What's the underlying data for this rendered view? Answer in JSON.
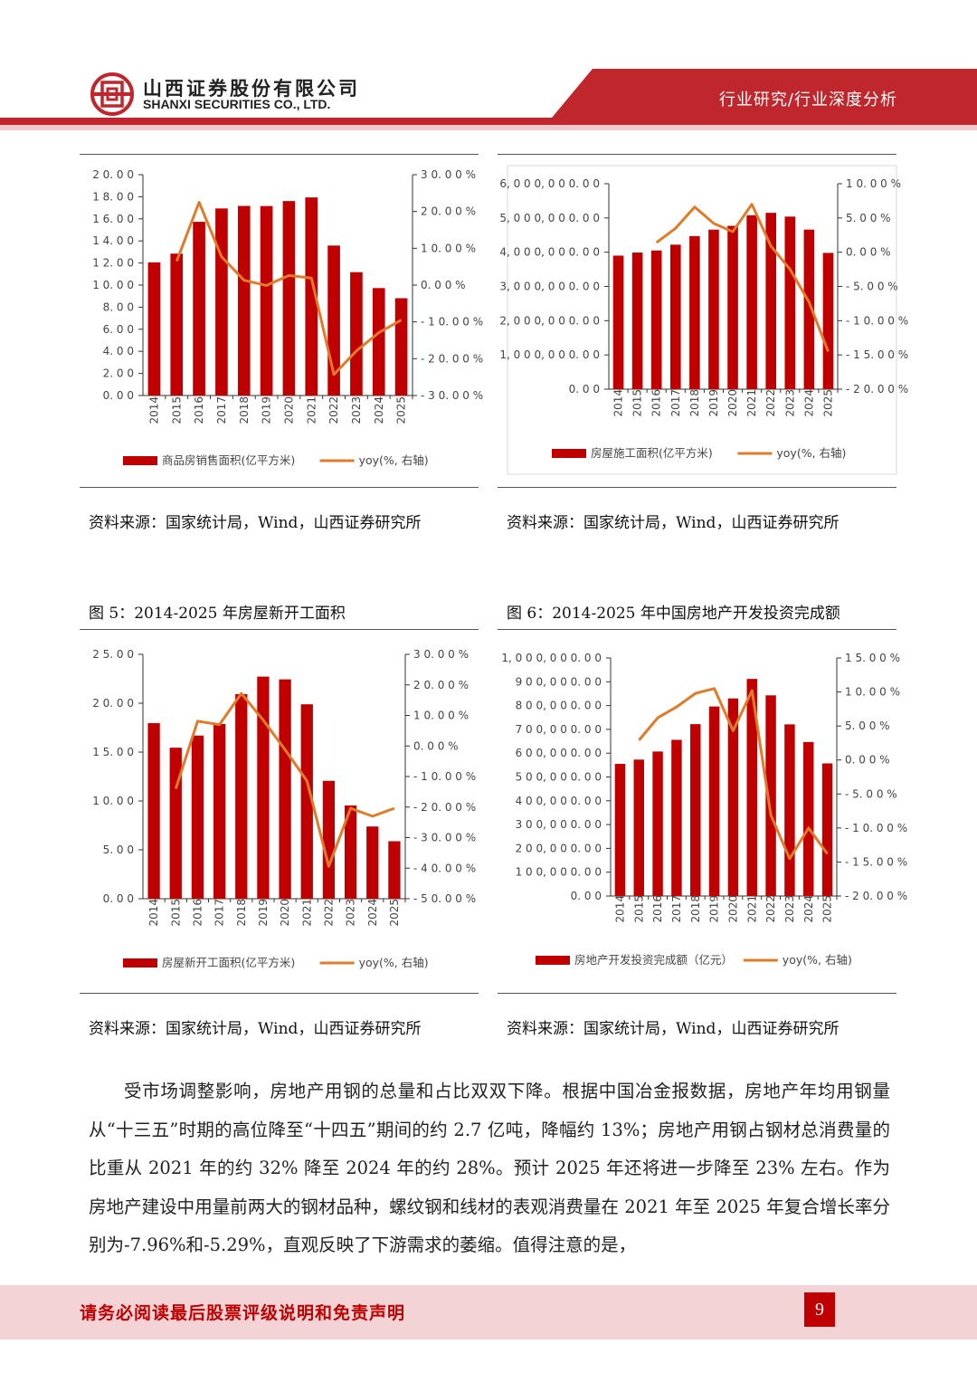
{
  "header": {
    "company_cn": "山西证券股份有限公司",
    "company_en": "SHANXI SECURITIES CO., LTD.",
    "category": "行业研究/行业深度分析"
  },
  "colors": {
    "bar": "#c00000",
    "line": "#e07b2a",
    "brand": "#c0272d",
    "footer_bg": "#f3d3d6"
  },
  "chart_data": [
    {
      "type": "bar",
      "title": "",
      "categories": [
        "2014",
        "2015",
        "2016",
        "2017",
        "2018",
        "2019",
        "2020",
        "2021",
        "2022",
        "2023",
        "2024",
        "2025"
      ],
      "series": [
        {
          "name": "商品房销售面积(亿平方米)",
          "axis": "left",
          "type": "bar",
          "values": [
            12.06,
            12.85,
            15.73,
            16.94,
            17.17,
            17.16,
            17.61,
            17.94,
            13.58,
            11.17,
            9.73,
            8.81
          ]
        },
        {
          "name": "yoy(%, 右轴)",
          "axis": "right",
          "type": "line",
          "values": [
            null,
            6.5,
            22.5,
            7.7,
            1.3,
            -0.1,
            2.6,
            1.9,
            -24.3,
            -17.9,
            -12.9,
            -9.5
          ]
        }
      ],
      "left_axis": {
        "ylim": [
          0,
          20
        ],
        "ticks": [
          "0.00",
          "2.00",
          "4.00",
          "6.00",
          "8.00",
          "10.00",
          "12.00",
          "14.00",
          "16.00",
          "18.00",
          "20.00"
        ]
      },
      "right_axis": {
        "ylim": [
          -30,
          30
        ],
        "ticks": [
          "-30.00%",
          "-20.00%",
          "-10.00%",
          "0.00%",
          "10.00%",
          "20.00%",
          "30.00%"
        ]
      },
      "legend": [
        "商品房销售面积(亿平方米)",
        "yoy(%, 右轴)"
      ],
      "source": "资料来源：国家统计局，Wind，山西证券研究所"
    },
    {
      "type": "bar",
      "title": "",
      "categories": [
        "2014",
        "2015",
        "2016",
        "2017",
        "2018",
        "2019",
        "2020",
        "2021",
        "2022",
        "2023",
        "2024",
        "2025"
      ],
      "series": [
        {
          "name": "房屋施工面积(亿平方米)",
          "axis": "left",
          "type": "bar",
          "values": [
            3900000,
            3990000,
            4050000,
            4220000,
            4470000,
            4660000,
            4770000,
            5080000,
            5150000,
            5040000,
            4660000,
            3980000
          ]
        },
        {
          "name": "yoy(%, 右轴)",
          "axis": "right",
          "type": "line",
          "values": [
            null,
            null,
            1.4,
            3.5,
            6.6,
            4.2,
            3.0,
            7.0,
            0.9,
            -2.5,
            -7.3,
            -14.5
          ]
        }
      ],
      "left_axis": {
        "ylim": [
          0,
          6000000
        ],
        "ticks": [
          "0.00",
          "1,000,000.00",
          "2,000,000.00",
          "3,000,000.00",
          "4,000,000.00",
          "5,000,000.00",
          "6,000,000.00"
        ]
      },
      "right_axis": {
        "ylim": [
          -20,
          10
        ],
        "ticks": [
          "-20.00%",
          "-15.00%",
          "-10.00%",
          "-5.00%",
          "0.00%",
          "5.00%",
          "10.00%"
        ]
      },
      "legend": [
        "房屋施工面积(亿平方米)",
        "yoy(%, 右轴)"
      ],
      "source": "资料来源：国家统计局，Wind，山西证券研究所"
    },
    {
      "type": "bar",
      "title": "图 5：2014-2025 年房屋新开工面积",
      "categories": [
        "2014",
        "2015",
        "2016",
        "2017",
        "2018",
        "2019",
        "2020",
        "2021",
        "2022",
        "2023",
        "2024",
        "2025"
      ],
      "series": [
        {
          "name": "房屋新开工面积(亿平方米)",
          "axis": "left",
          "type": "bar",
          "values": [
            17.96,
            15.45,
            16.69,
            17.87,
            20.93,
            22.72,
            22.44,
            19.89,
            12.06,
            9.54,
            7.39,
            5.88
          ]
        },
        {
          "name": "yoy(%, 右轴)",
          "axis": "right",
          "type": "line",
          "values": [
            null,
            -14.0,
            8.1,
            7.0,
            17.2,
            8.5,
            -1.2,
            -11.4,
            -39.4,
            -20.4,
            -23.0,
            -20.4
          ]
        }
      ],
      "left_axis": {
        "ylim": [
          0,
          25
        ],
        "ticks": [
          "0.00",
          "5.00",
          "10.00",
          "15.00",
          "20.00",
          "25.00"
        ]
      },
      "right_axis": {
        "ylim": [
          -50,
          30
        ],
        "ticks": [
          "-50.00%",
          "-40.00%",
          "-30.00%",
          "-20.00%",
          "-10.00%",
          "0.00%",
          "10.00%",
          "20.00%",
          "30.00%"
        ]
      },
      "legend": [
        "房屋新开工面积(亿平方米)",
        "yoy(%, 右轴)"
      ],
      "source": "资料来源：国家统计局，Wind，山西证券研究所"
    },
    {
      "type": "bar",
      "title": "图 6：2014-2025 年中国房地产开发投资完成额",
      "categories": [
        "2014",
        "2015",
        "2016",
        "2017",
        "2018",
        "2019",
        "2020",
        "2021",
        "2022",
        "2023",
        "2024",
        "2025"
      ],
      "series": [
        {
          "name": "房地产开发投资完成额（亿元）",
          "axis": "left",
          "type": "bar",
          "values": [
            555000,
            573000,
            607000,
            656000,
            722000,
            796000,
            830000,
            912000,
            843000,
            721000,
            647000,
            557000
          ]
        },
        {
          "name": "yoy(%, 右轴)",
          "axis": "right",
          "type": "line",
          "values": [
            null,
            2.9,
            6.2,
            7.8,
            9.8,
            10.5,
            4.3,
            10.2,
            -8.1,
            -14.5,
            -10.0,
            -13.8
          ]
        }
      ],
      "left_axis": {
        "ylim": [
          0,
          1000000
        ],
        "ticks": [
          "0.00",
          "100,000.00",
          "200,000.00",
          "300,000.00",
          "400,000.00",
          "500,000.00",
          "600,000.00",
          "700,000.00",
          "800,000.00",
          "900,000.00",
          "1,000,000.00"
        ]
      },
      "right_axis": {
        "ylim": [
          -20,
          15
        ],
        "ticks": [
          "-20.00%",
          "-15.00%",
          "-10.00%",
          "-5.00%",
          "0.00%",
          "5.00%",
          "10.00%",
          "15.00%"
        ]
      },
      "legend": [
        "房地产开发投资完成额（亿元）",
        "yoy(%, 右轴)"
      ],
      "source": "资料来源：国家统计局，Wind，山西证券研究所"
    }
  ],
  "body": {
    "paragraph": "受市场调整影响，房地产用钢的总量和占比双双下降。根据中国冶金报数据，房地产年均用钢量从“十三五”时期的高位降至“十四五”期间的约 2.7 亿吨，降幅约 13%；房地产用钢占钢材总消费量的比重从 2021 年的约 32% 降至 2024 年的约 28%。预计 2025 年还将进一步降至 23% 左右。作为房地产建设中用量前两大的钢材品种，螺纹钢和线材的表观消费量在 2021 年至 2025 年复合增长率分别为-7.96%和-5.29%，直观反映了下游需求的萎缩。值得注意的是，"
  },
  "footer": {
    "notice": "请务必阅读最后股票评级说明和免责声明",
    "page": "9"
  }
}
